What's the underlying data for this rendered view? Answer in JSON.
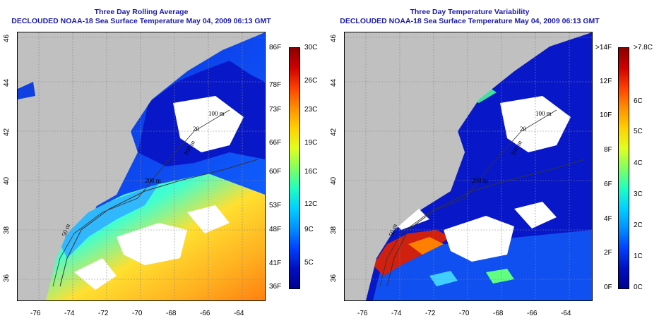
{
  "left_panel": {
    "title": "Three Day Rolling Average",
    "subtitle": "DECLOUDED NOAA-18 Sea Surface Temperature May 04, 2009 06:13 GMT",
    "x_ticks": [
      "-76",
      "-74",
      "-72",
      "-70",
      "-68",
      "-66",
      "-64"
    ],
    "y_ticks": [
      "46",
      "44",
      "42",
      "40",
      "38",
      "36"
    ],
    "depth_labels": [
      "100 m",
      "200 m",
      "100 m",
      "50 m",
      "20"
    ],
    "colorbar_f": [
      "86F",
      "78F",
      "73F",
      "66F",
      "60F",
      "53F",
      "48F",
      "41F",
      "36F"
    ],
    "colorbar_c": [
      "30C",
      "26C",
      "23C",
      "19C",
      "16C",
      "12C",
      "9C",
      "5C"
    ]
  },
  "right_panel": {
    "title": "Three Day Temperature Variability",
    "subtitle": "DECLOUDED NOAA-18 Sea Surface Temperature May 04, 2009 06:13 GMT",
    "x_ticks": [
      "-76",
      "-74",
      "-72",
      "-70",
      "-68",
      "-66",
      "-64"
    ],
    "y_ticks": [
      "46",
      "44",
      "42",
      "40",
      "38",
      "36"
    ],
    "depth_labels": [
      "100 m",
      "200 m",
      "100 m",
      "50 m",
      "20"
    ],
    "colorbar_f": [
      ">14F",
      "12F",
      "10F",
      "8F",
      "6F",
      "4F",
      "2F",
      "0F"
    ],
    "colorbar_c": [
      ">7.8C",
      "6C",
      "5C",
      "4C",
      "3C",
      "2C",
      "1C",
      "0C"
    ]
  },
  "colors": {
    "land": "#c0c0c0",
    "title": "#1a1aa8",
    "sst_scale": [
      "#0000a0",
      "#0030ff",
      "#00a0ff",
      "#00ffd0",
      "#a0ff40",
      "#ffff00",
      "#ffa000",
      "#ff3000",
      "#a00000"
    ],
    "var_scale": [
      "#0000a0",
      "#0030ff",
      "#00a0ff",
      "#00ffd0",
      "#a0ff40",
      "#ffff00",
      "#ffa000",
      "#ff3000",
      "#a00000"
    ]
  }
}
